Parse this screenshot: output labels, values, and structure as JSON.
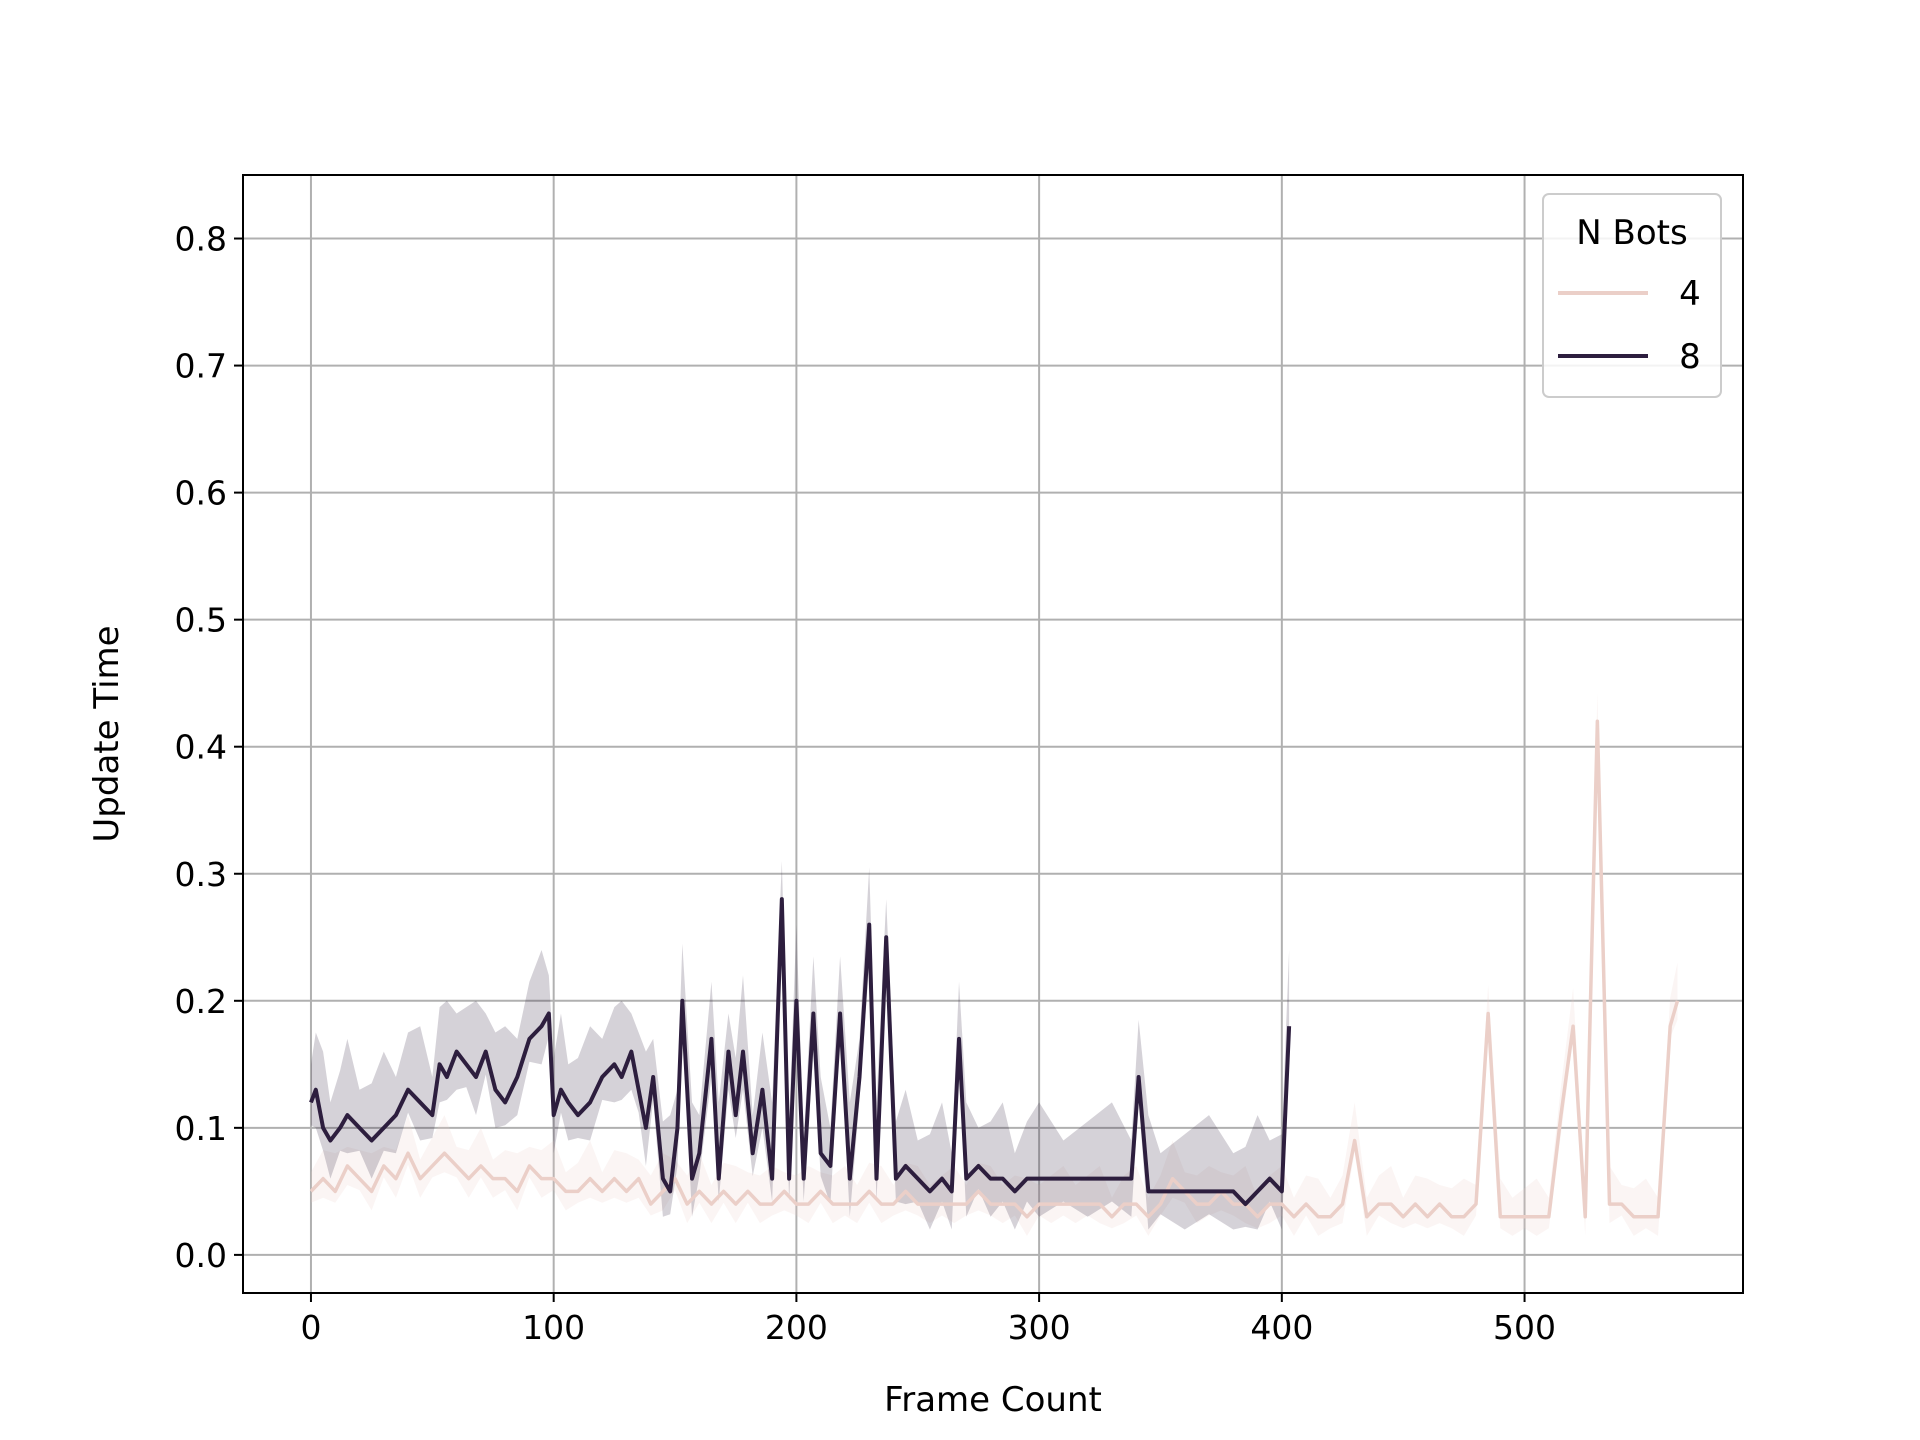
{
  "chart_data": {
    "type": "line",
    "xlabel": "Frame Count",
    "ylabel": "Update Time",
    "xlim": [
      -28,
      590
    ],
    "ylim": [
      -0.03,
      0.85
    ],
    "xticks": [
      0,
      100,
      200,
      300,
      400,
      500
    ],
    "yticks": [
      0.0,
      0.1,
      0.2,
      0.3,
      0.4,
      0.5,
      0.6,
      0.7,
      0.8
    ],
    "xtick_labels": [
      "0",
      "100",
      "200",
      "300",
      "400",
      "500"
    ],
    "ytick_labels": [
      "0.0",
      "0.1",
      "0.2",
      "0.3",
      "0.4",
      "0.5",
      "0.6",
      "0.7",
      "0.8"
    ],
    "grid": true,
    "legend": {
      "title": "N Bots",
      "placement": "top-right"
    },
    "series": [
      {
        "name": "4",
        "color": "#ebcfc8",
        "x": [
          0,
          5,
          10,
          15,
          20,
          25,
          30,
          35,
          40,
          45,
          50,
          55,
          60,
          65,
          70,
          75,
          80,
          85,
          90,
          95,
          100,
          105,
          110,
          115,
          120,
          125,
          130,
          135,
          140,
          145,
          150,
          155,
          160,
          165,
          170,
          175,
          180,
          185,
          190,
          195,
          200,
          205,
          210,
          215,
          220,
          225,
          230,
          235,
          240,
          245,
          250,
          255,
          260,
          265,
          270,
          275,
          280,
          285,
          290,
          295,
          300,
          305,
          310,
          315,
          320,
          325,
          330,
          335,
          340,
          345,
          350,
          355,
          360,
          365,
          370,
          375,
          380,
          385,
          390,
          395,
          400,
          405,
          410,
          415,
          420,
          425,
          430,
          435,
          440,
          445,
          450,
          455,
          460,
          465,
          470,
          475,
          480,
          485,
          490,
          495,
          500,
          505,
          510,
          515,
          520,
          525,
          530,
          535,
          540,
          545,
          550,
          555,
          560,
          563
        ],
        "y": [
          0.05,
          0.06,
          0.05,
          0.07,
          0.06,
          0.05,
          0.07,
          0.06,
          0.08,
          0.06,
          0.07,
          0.08,
          0.07,
          0.06,
          0.07,
          0.06,
          0.06,
          0.05,
          0.07,
          0.06,
          0.06,
          0.05,
          0.05,
          0.06,
          0.05,
          0.06,
          0.05,
          0.06,
          0.04,
          0.05,
          0.06,
          0.04,
          0.05,
          0.04,
          0.05,
          0.04,
          0.05,
          0.04,
          0.04,
          0.05,
          0.04,
          0.04,
          0.05,
          0.04,
          0.04,
          0.04,
          0.05,
          0.04,
          0.04,
          0.05,
          0.04,
          0.04,
          0.04,
          0.04,
          0.04,
          0.05,
          0.04,
          0.04,
          0.04,
          0.03,
          0.04,
          0.04,
          0.04,
          0.04,
          0.04,
          0.04,
          0.03,
          0.04,
          0.04,
          0.03,
          0.04,
          0.06,
          0.05,
          0.04,
          0.04,
          0.05,
          0.04,
          0.04,
          0.03,
          0.04,
          0.04,
          0.03,
          0.04,
          0.03,
          0.03,
          0.04,
          0.09,
          0.03,
          0.04,
          0.04,
          0.03,
          0.04,
          0.03,
          0.04,
          0.03,
          0.03,
          0.04,
          0.19,
          0.03,
          0.03,
          0.03,
          0.03,
          0.03,
          0.11,
          0.18,
          0.03,
          0.42,
          0.04,
          0.04,
          0.03,
          0.03,
          0.03,
          0.18,
          0.2
        ]
      },
      {
        "name": "8",
        "color": "#2d1e3e",
        "x": [
          0,
          2,
          5,
          8,
          12,
          15,
          20,
          25,
          30,
          35,
          40,
          45,
          50,
          53,
          56,
          60,
          64,
          68,
          72,
          76,
          80,
          85,
          90,
          95,
          98,
          100,
          103,
          106,
          110,
          115,
          120,
          125,
          128,
          132,
          135,
          138,
          141,
          145,
          148,
          151,
          153,
          157,
          160,
          165,
          168,
          172,
          175,
          178,
          182,
          186,
          190,
          194,
          197,
          200,
          203,
          207,
          210,
          214,
          218,
          222,
          226,
          230,
          233,
          237,
          241,
          245,
          250,
          255,
          260,
          264,
          267,
          270,
          275,
          280,
          285,
          290,
          295,
          300,
          310,
          320,
          330,
          338,
          341,
          345,
          350,
          360,
          370,
          380,
          385,
          390,
          395,
          400,
          403
        ],
        "y": [
          0.12,
          0.13,
          0.1,
          0.09,
          0.1,
          0.11,
          0.1,
          0.09,
          0.1,
          0.11,
          0.13,
          0.12,
          0.11,
          0.15,
          0.14,
          0.16,
          0.15,
          0.14,
          0.16,
          0.13,
          0.12,
          0.14,
          0.17,
          0.18,
          0.19,
          0.11,
          0.13,
          0.12,
          0.11,
          0.12,
          0.14,
          0.15,
          0.14,
          0.16,
          0.13,
          0.1,
          0.14,
          0.06,
          0.05,
          0.1,
          0.2,
          0.06,
          0.08,
          0.17,
          0.06,
          0.16,
          0.11,
          0.16,
          0.08,
          0.13,
          0.06,
          0.28,
          0.06,
          0.2,
          0.06,
          0.19,
          0.08,
          0.07,
          0.19,
          0.06,
          0.14,
          0.26,
          0.06,
          0.25,
          0.06,
          0.07,
          0.06,
          0.05,
          0.06,
          0.05,
          0.17,
          0.06,
          0.07,
          0.06,
          0.06,
          0.05,
          0.06,
          0.06,
          0.06,
          0.06,
          0.06,
          0.06,
          0.14,
          0.05,
          0.05,
          0.05,
          0.05,
          0.05,
          0.04,
          0.05,
          0.06,
          0.05,
          0.18
        ]
      }
    ]
  }
}
